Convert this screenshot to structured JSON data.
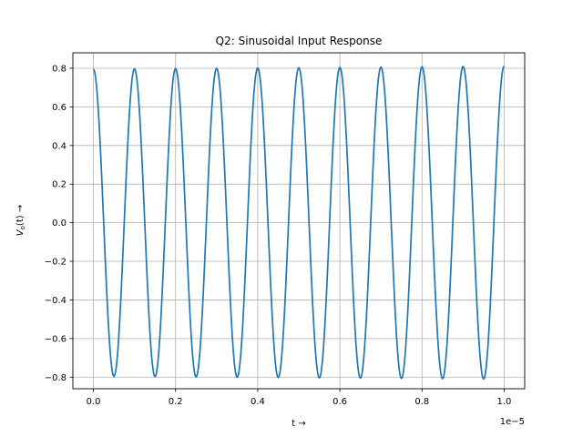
{
  "chart_data": {
    "type": "line",
    "title": "Q2: Sinusoidal Input Response",
    "xlabel": "t →",
    "ylabel_main": "V",
    "ylabel_sub": "o",
    "ylabel_rest": "(t) →",
    "x_offset_label": "1e−5",
    "xlim": [
      -0.05,
      1.05
    ],
    "ylim": [
      -0.86,
      0.88
    ],
    "x_scale_note": "x values shown in units of 1e-5",
    "xticks": [
      0.0,
      0.2,
      0.4,
      0.6,
      0.8,
      1.0
    ],
    "xtick_labels": [
      "0.0",
      "0.2",
      "0.4",
      "0.6",
      "0.8",
      "1.0"
    ],
    "yticks": [
      -0.8,
      -0.6,
      -0.4,
      -0.2,
      0.0,
      0.2,
      0.4,
      0.6,
      0.8
    ],
    "ytick_labels": [
      "−0.8",
      "−0.6",
      "−0.4",
      "−0.2",
      "0.0",
      "0.2",
      "0.4",
      "0.6",
      "0.8"
    ],
    "grid": true,
    "line_color": "#1f77b4",
    "series": [
      {
        "function": "sinusoid",
        "x_start": 0.0,
        "x_end": 1.0,
        "period": 0.1,
        "amplitude_start": 0.795,
        "amplitude_end": 0.81,
        "phase": "cosine"
      }
    ]
  }
}
